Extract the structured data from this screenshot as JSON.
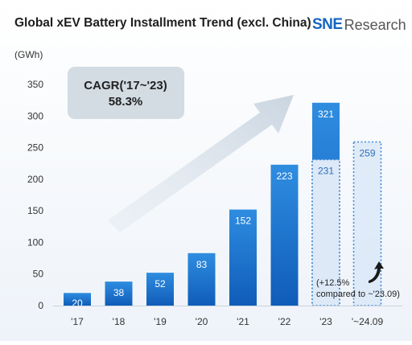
{
  "header": {
    "title": "Global xEV Battery Installment Trend (excl. China)",
    "logo_mark": "SNE",
    "logo_word": "Research"
  },
  "chart_data": {
    "type": "bar",
    "title": "Global xEV Battery Installment Trend (excl. China)",
    "ylabel": "(GWh)",
    "xlabel": "",
    "ylim": [
      0,
      350
    ],
    "yticks": [
      0,
      50,
      100,
      150,
      200,
      250,
      300,
      350
    ],
    "grid": false,
    "categories": [
      "'17",
      "'18",
      "'19",
      "'20",
      "'21",
      "'22",
      "'23",
      "'~24.09"
    ],
    "series": [
      {
        "values": [
          20,
          38,
          52,
          83,
          152,
          223,
          321,
          null
        ]
      },
      {
        "values": [
          null,
          null,
          null,
          null,
          null,
          null,
          231,
          259
        ]
      }
    ],
    "data_labels": [
      "20",
      "38",
      "52",
      "83",
      "152",
      "223",
      "321",
      "231",
      "259"
    ],
    "annotations": {
      "cagr_line1": "CAGR('17~'23)",
      "cagr_line2": "58.3%",
      "growth_line1": "(+12.5%",
      "growth_line2": "compared to ~'23.09)"
    },
    "colors": {
      "bar": "#1565c0",
      "bar_light": "#2f8de0",
      "ytd_fill": "#dde9f7",
      "ytd_border": "#3d88d8",
      "ytd_text": "#2d6fb8",
      "axis_text": "#333333"
    }
  }
}
